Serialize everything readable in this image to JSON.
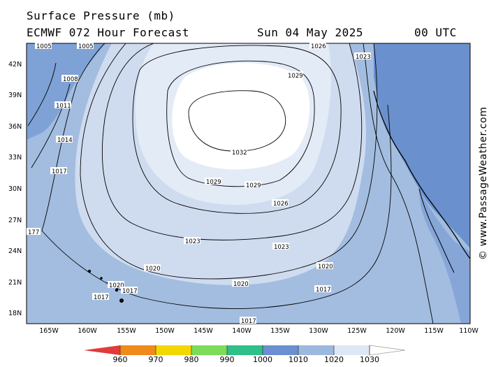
{
  "header": {
    "title": "Surface Pressure (mb)",
    "model": "ECMWF 072 Hour Forecast",
    "date": "Sun 04 May 2025",
    "time": "00 UTC"
  },
  "axes": {
    "lat_labels": [
      "42N",
      "39N",
      "36N",
      "33N",
      "30N",
      "27N",
      "24N",
      "21N",
      "18N"
    ],
    "lon_labels": [
      "165W",
      "160W",
      "155W",
      "150W",
      "145W",
      "140W",
      "135W",
      "130W",
      "125W",
      "120W",
      "115W",
      "110W"
    ]
  },
  "isobars": {
    "labels": [
      "1032",
      "1029",
      "1029",
      "1029",
      "1026",
      "1026",
      "1023",
      "1023",
      "1023",
      "1020",
      "1020",
      "1020",
      "1020",
      "1017",
      "1017",
      "1017",
      "1017",
      "1017",
      "1014",
      "1011",
      "1008",
      "1005",
      "1005",
      "177"
    ]
  },
  "colorbar": {
    "values": [
      "960",
      "970",
      "980",
      "990",
      "1000",
      "1010",
      "1020",
      "1030"
    ],
    "colors": [
      "#e33b3b",
      "#f08a1a",
      "#f3d800",
      "#7cdc5a",
      "#2fbf8a",
      "#6b8fd0",
      "#9cb8de",
      "#dde7f5",
      "#ffffff"
    ]
  },
  "watermark": "© www.PassageWeather.com",
  "colors": {
    "ocean_base": "#a3bde0",
    "mid_band": "#cfdcef",
    "high_band": "#e6edf8",
    "core": "#ffffff",
    "low": "#6a90cd",
    "land": "#6a90cd"
  }
}
